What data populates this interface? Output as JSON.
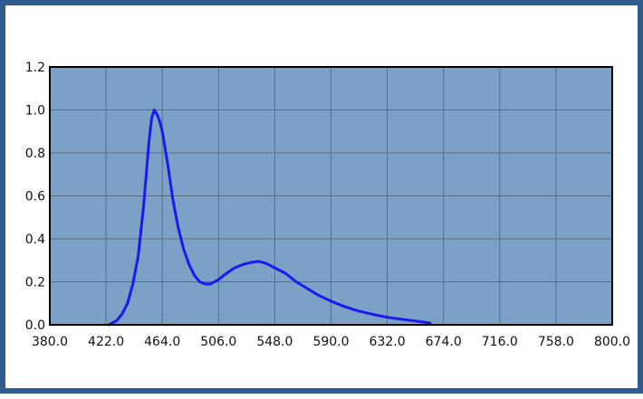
{
  "colors": {
    "frame_border": "#2f5b8e",
    "plot_background": "#7ba2c6",
    "grid": "#5a6f7e",
    "series_line": "#1a1aee"
  },
  "chart_data": {
    "type": "line",
    "title": "",
    "xlabel": "",
    "ylabel": "",
    "xlim": [
      380.0,
      800.0
    ],
    "ylim": [
      0.0,
      1.2
    ],
    "grid": true,
    "x_ticks": [
      "380.0",
      "422.0",
      "464.0",
      "506.0",
      "548.0",
      "590.0",
      "632.0",
      "674.0",
      "716.0",
      "758.0",
      "800.0"
    ],
    "y_ticks": [
      "0.0",
      "0.2",
      "0.4",
      "0.6",
      "0.8",
      "1.0",
      "1.2"
    ],
    "series": [
      {
        "x": [
          424,
          430,
          434,
          438,
          442,
          446,
          450,
          452,
          454,
          456,
          458,
          460,
          462,
          464,
          468,
          472,
          476,
          480,
          484,
          488,
          492,
          496,
          500,
          506,
          512,
          518,
          524,
          530,
          536,
          542,
          548,
          556,
          564,
          572,
          580,
          590,
          600,
          610,
          620,
          632,
          644,
          656,
          664
        ],
        "y": [
          0.0,
          0.02,
          0.05,
          0.1,
          0.19,
          0.32,
          0.55,
          0.7,
          0.85,
          0.96,
          1.0,
          0.98,
          0.95,
          0.9,
          0.75,
          0.58,
          0.45,
          0.35,
          0.28,
          0.23,
          0.2,
          0.19,
          0.19,
          0.21,
          0.24,
          0.265,
          0.28,
          0.29,
          0.295,
          0.285,
          0.265,
          0.24,
          0.2,
          0.17,
          0.14,
          0.11,
          0.085,
          0.065,
          0.05,
          0.035,
          0.025,
          0.015,
          0.008
        ]
      }
    ]
  }
}
